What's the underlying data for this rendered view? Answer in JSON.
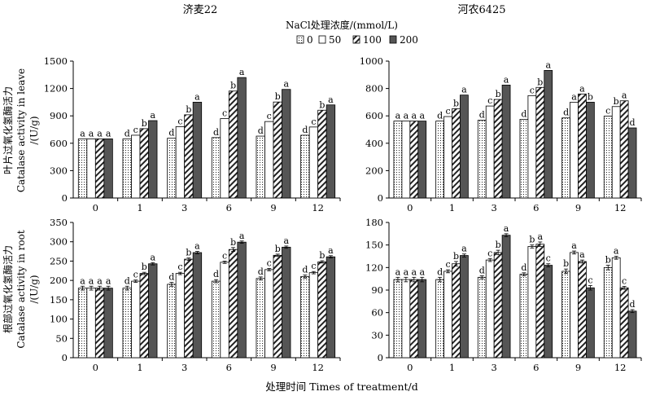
{
  "figure": {
    "titles": [
      "济麦22",
      "河农6425"
    ],
    "legend_title": "NaCl处理浓度/(mmol/L)",
    "legend": [
      {
        "label": "0",
        "pattern": "dots"
      },
      {
        "label": "50",
        "pattern": "white"
      },
      {
        "label": "100",
        "pattern": "hatch"
      },
      {
        "label": "200",
        "pattern": "solid"
      }
    ],
    "xlabel": "处理时间 Times of treatment/d",
    "ylabel_leaf": [
      "叶片过氧化氢酶活力",
      "Catalase activity in leave",
      "/(U/g)"
    ],
    "ylabel_root": [
      "根部过氧化氢酶活力",
      "Catalase activity in root",
      "/(U/g)"
    ],
    "colors": {
      "solid": "#555555",
      "edge": "#000000"
    }
  },
  "chart_data": [
    {
      "type": "bar",
      "title": "济麦22",
      "categories": [
        "0",
        "1",
        "3",
        "6",
        "9",
        "12"
      ],
      "ylim": [
        0,
        1500
      ],
      "yticks": [
        0,
        300,
        600,
        900,
        1200,
        1500
      ],
      "series": [
        {
          "name": "0",
          "values": [
            648,
            648,
            655,
            662,
            678,
            688
          ],
          "err": [
            0,
            0,
            0,
            0,
            0,
            0
          ]
        },
        {
          "name": "50",
          "values": [
            648,
            688,
            782,
            870,
            838,
            778
          ],
          "err": [
            0,
            0,
            0,
            0,
            0,
            0
          ]
        },
        {
          "name": "100",
          "values": [
            648,
            760,
            912,
            1172,
            1052,
            962
          ],
          "err": [
            0,
            0,
            0,
            0,
            0,
            0
          ]
        },
        {
          "name": "200",
          "values": [
            648,
            848,
            1050,
            1320,
            1190,
            1020
          ],
          "err": [
            0,
            0,
            0,
            0,
            0,
            0
          ]
        }
      ],
      "letters": [
        [
          "a",
          "a",
          "a",
          "a"
        ],
        [
          "d",
          "c",
          "b",
          "a"
        ],
        [
          "d",
          "c",
          "b",
          "a"
        ],
        [
          "d",
          "c",
          "b",
          "a"
        ],
        [
          "d",
          "c",
          "b",
          "a"
        ],
        [
          "d",
          "c",
          "b",
          "a"
        ]
      ]
    },
    {
      "type": "bar",
      "title": "河农6425",
      "categories": [
        "0",
        "1",
        "3",
        "6",
        "9",
        "12"
      ],
      "ylim": [
        0,
        1000
      ],
      "yticks": [
        0,
        200,
        400,
        600,
        800,
        1000
      ],
      "series": [
        {
          "name": "0",
          "values": [
            562,
            562,
            568,
            575,
            585,
            598
          ],
          "err": [
            0,
            0,
            0,
            0,
            0,
            0
          ]
        },
        {
          "name": "50",
          "values": [
            562,
            595,
            672,
            748,
            700,
            668
          ],
          "err": [
            0,
            0,
            0,
            0,
            0,
            0
          ]
        },
        {
          "name": "100",
          "values": [
            562,
            652,
            720,
            808,
            760,
            710
          ],
          "err": [
            0,
            0,
            0,
            0,
            0,
            0
          ]
        },
        {
          "name": "200",
          "values": [
            562,
            752,
            825,
            932,
            700,
            512
          ],
          "err": [
            0,
            0,
            0,
            0,
            0,
            0
          ]
        }
      ],
      "letters": [
        [
          "a",
          "a",
          "a",
          "a"
        ],
        [
          "d",
          "c",
          "b",
          "a"
        ],
        [
          "d",
          "c",
          "b",
          "a"
        ],
        [
          "d",
          "c",
          "b",
          "a"
        ],
        [
          "d",
          "a",
          "a",
          "b"
        ],
        [
          "c",
          "b",
          "a",
          "d"
        ]
      ]
    },
    {
      "type": "bar",
      "categories": [
        "0",
        "1",
        "3",
        "6",
        "9",
        "12"
      ],
      "ylim": [
        0,
        350
      ],
      "yticks": [
        0,
        50,
        100,
        150,
        200,
        250,
        300,
        350
      ],
      "series": [
        {
          "name": "0",
          "values": [
            180,
            180,
            190,
            198,
            205,
            210
          ],
          "err": [
            5,
            5,
            5,
            4,
            4,
            4
          ]
        },
        {
          "name": "50",
          "values": [
            180,
            198,
            218,
            247,
            228,
            220
          ],
          "err": [
            5,
            3,
            3,
            3,
            3,
            3
          ]
        },
        {
          "name": "100",
          "values": [
            180,
            218,
            255,
            280,
            265,
            248
          ],
          "err": [
            5,
            3,
            3,
            5,
            3,
            3
          ]
        },
        {
          "name": "200",
          "values": [
            180,
            243,
            272,
            299,
            286,
            261
          ],
          "err": [
            5,
            3,
            3,
            3,
            3,
            3
          ]
        }
      ],
      "letters": [
        [
          "a",
          "a",
          "a",
          "a"
        ],
        [
          "d",
          "c",
          "b",
          "a"
        ],
        [
          "d",
          "c",
          "b",
          "a"
        ],
        [
          "d",
          "c",
          "b",
          "a"
        ],
        [
          "d",
          "c",
          "b",
          "a"
        ],
        [
          "d",
          "c",
          "b",
          "a"
        ]
      ]
    },
    {
      "type": "bar",
      "categories": [
        "0",
        "1",
        "3",
        "6",
        "9",
        "12"
      ],
      "ylim": [
        0,
        180
      ],
      "yticks": [
        0,
        30,
        60,
        90,
        120,
        150,
        180
      ],
      "series": [
        {
          "name": "0",
          "values": [
            104,
            104,
            107,
            111,
            115,
            120
          ],
          "err": [
            3,
            3,
            2,
            2,
            3,
            3
          ]
        },
        {
          "name": "50",
          "values": [
            104,
            115,
            130,
            148,
            140,
            133
          ],
          "err": [
            3,
            2,
            2,
            2,
            2,
            2
          ]
        },
        {
          "name": "100",
          "values": [
            104,
            125,
            140,
            151,
            128,
            93
          ],
          "err": [
            3,
            3,
            3,
            3,
            2,
            2
          ]
        },
        {
          "name": "200",
          "values": [
            104,
            136,
            163,
            123,
            93,
            62
          ],
          "err": [
            3,
            2,
            2,
            2,
            3,
            2
          ]
        }
      ],
      "letters": [
        [
          "a",
          "a",
          "a",
          "a"
        ],
        [
          "d",
          "c",
          "b",
          "a"
        ],
        [
          "d",
          "c",
          "b",
          "a"
        ],
        [
          "d",
          "b",
          "a",
          "c"
        ],
        [
          "b",
          "a",
          "a",
          "c"
        ],
        [
          "b",
          "a",
          "c",
          "d"
        ]
      ]
    }
  ]
}
